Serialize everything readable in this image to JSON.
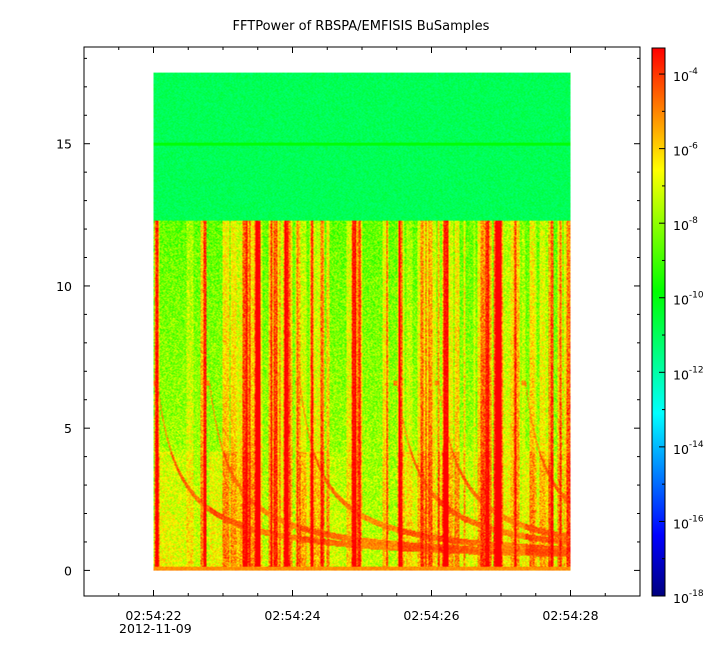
{
  "chart_data": {
    "type": "heatmap",
    "title": "FFTPower of RBSPA/EMFISIS  BuSamples",
    "xlabel": "",
    "ylabel": "",
    "x_ticks": [
      "02:54:22",
      "02:54:24",
      "02:54:26",
      "02:54:28"
    ],
    "x_date_label": "2012-11-09",
    "x_range": [
      "02:54:21",
      "02:54:29"
    ],
    "y_ticks": [
      0,
      5,
      10,
      15
    ],
    "ylim": [
      -0.9,
      18.4
    ],
    "data_extent": {
      "x": [
        "02:54:22",
        "02:54:28"
      ],
      "y": [
        0,
        17.5
      ]
    },
    "colorbar": {
      "scale": "log",
      "range": [
        1e-18,
        0.0005
      ],
      "tick_base": "10",
      "tick_exponents": [
        "-4",
        "-6",
        "-8",
        "-10",
        "-12",
        "-14",
        "-16",
        "-18"
      ],
      "colors": [
        "#00007f",
        "#0000ff",
        "#007fff",
        "#00ffff",
        "#00ff7f",
        "#00ff00",
        "#7fff00",
        "#ffff00",
        "#ff7f00",
        "#ff0000"
      ]
    },
    "features": {
      "background_band": {
        "y_from": 12.3,
        "y_to": 17.5,
        "level": "1e-12",
        "color": "#00ff66"
      },
      "horizontal_line": {
        "y": 15.0,
        "color": "#44e000"
      },
      "chorus_onsets": [
        "02:54:22.05",
        "02:54:22.80",
        "02:54:24.10",
        "02:54:25.50",
        "02:54:26.10",
        "02:54:27.35"
      ]
    },
    "grid": false,
    "legend": "none"
  }
}
